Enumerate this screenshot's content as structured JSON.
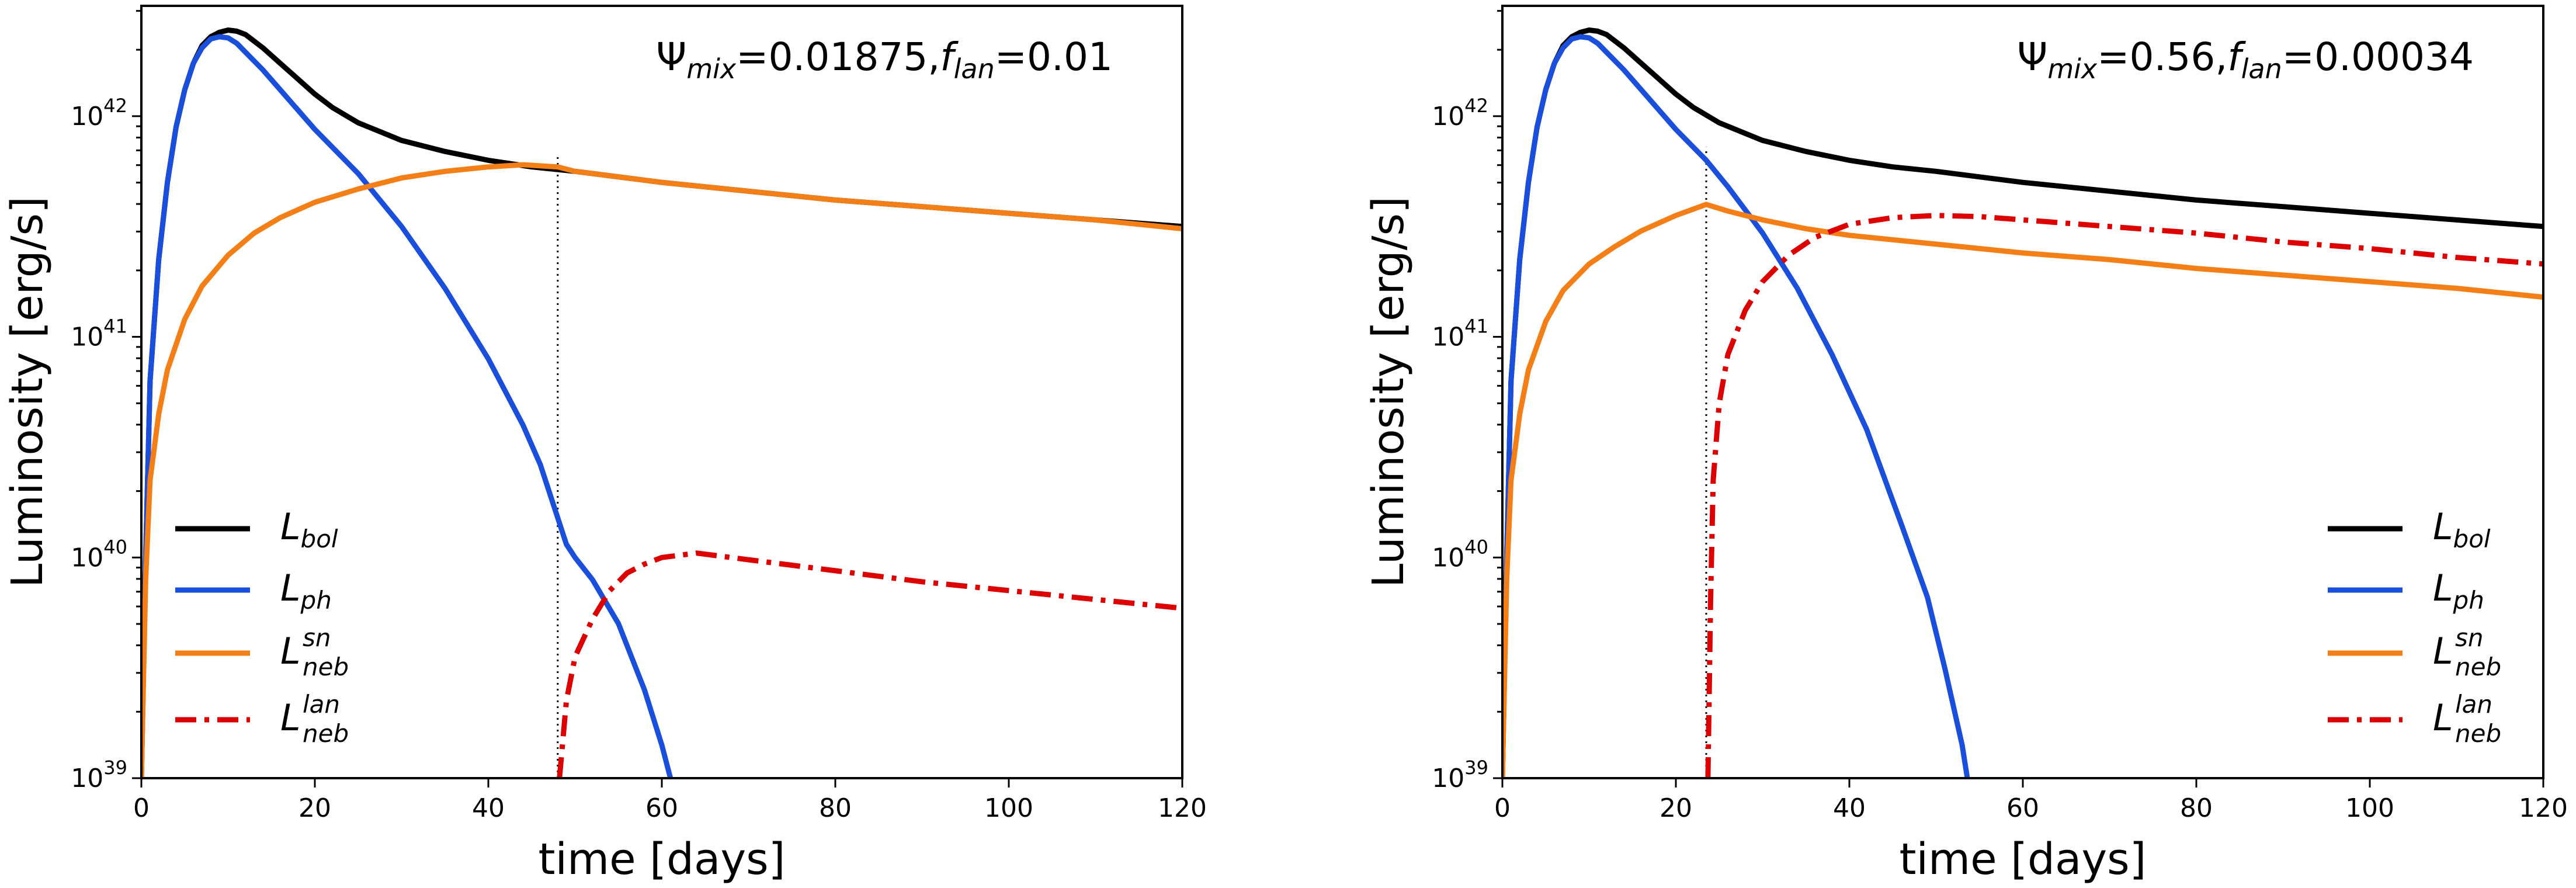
{
  "chart_data": [
    {
      "type": "line",
      "title": "",
      "annotation": {
        "psi_symbol": "Ψ",
        "psi_sub": "mix",
        "psi_value": "=0.01875,",
        "f_symbol": "f",
        "f_sub": "lan",
        "f_value": "=0.01"
      },
      "xlabel": "time [days]",
      "ylabel": "Luminosity [erg/s]",
      "xlim": [
        0,
        120
      ],
      "ylim_log10": [
        39,
        42.5
      ],
      "yscale": "log",
      "x_ticks": [
        0,
        20,
        40,
        60,
        80,
        100,
        120
      ],
      "y_ticks": [
        {
          "base": "10",
          "exp": "39",
          "value_log10": 39
        },
        {
          "base": "10",
          "exp": "40",
          "value_log10": 40
        },
        {
          "base": "10",
          "exp": "41",
          "value_log10": 41
        },
        {
          "base": "10",
          "exp": "42",
          "value_log10": 42
        }
      ],
      "legend_position": "left",
      "vline": {
        "x": 48,
        "style": "dotted"
      },
      "series": [
        {
          "key": "bol",
          "name": "L",
          "sup": "",
          "sub": "bol",
          "color": "#000000",
          "style": "solid",
          "points": [
            [
              0,
              39.0
            ],
            [
              0.5,
              40.0
            ],
            [
              1,
              40.8
            ],
            [
              2,
              41.35
            ],
            [
              3,
              41.7
            ],
            [
              4,
              41.95
            ],
            [
              5,
              42.12
            ],
            [
              6,
              42.24
            ],
            [
              7,
              42.32
            ],
            [
              8,
              42.36
            ],
            [
              9,
              42.38
            ],
            [
              10,
              42.39
            ],
            [
              11,
              42.385
            ],
            [
              12,
              42.37
            ],
            [
              14,
              42.31
            ],
            [
              16,
              42.24
            ],
            [
              18,
              42.17
            ],
            [
              20,
              42.1
            ],
            [
              22,
              42.04
            ],
            [
              25,
              41.97
            ],
            [
              30,
              41.89
            ],
            [
              35,
              41.84
            ],
            [
              40,
              41.8
            ],
            [
              45,
              41.77
            ],
            [
              50,
              41.75
            ],
            [
              60,
              41.7
            ],
            [
              70,
              41.66
            ],
            [
              80,
              41.62
            ],
            [
              90,
              41.59
            ],
            [
              100,
              41.56
            ],
            [
              110,
              41.53
            ],
            [
              120,
              41.5
            ]
          ]
        },
        {
          "key": "ph",
          "name": "L",
          "sup": "",
          "sub": "ph",
          "color": "#1a4fdc",
          "style": "solid",
          "points": [
            [
              0,
              39.0
            ],
            [
              0.5,
              40.0
            ],
            [
              1,
              40.8
            ],
            [
              2,
              41.35
            ],
            [
              3,
              41.7
            ],
            [
              4,
              41.95
            ],
            [
              5,
              42.12
            ],
            [
              6,
              42.24
            ],
            [
              7,
              42.31
            ],
            [
              8,
              42.35
            ],
            [
              9,
              42.36
            ],
            [
              10,
              42.355
            ],
            [
              11,
              42.33
            ],
            [
              12,
              42.29
            ],
            [
              14,
              42.21
            ],
            [
              16,
              42.12
            ],
            [
              18,
              42.03
            ],
            [
              20,
              41.94
            ],
            [
              25,
              41.74
            ],
            [
              30,
              41.5
            ],
            [
              35,
              41.22
            ],
            [
              40,
              40.9
            ],
            [
              44,
              40.6
            ],
            [
              46,
              40.42
            ],
            [
              48,
              40.18
            ],
            [
              49,
              40.06
            ],
            [
              50,
              40.0
            ],
            [
              52,
              39.9
            ],
            [
              55,
              39.7
            ],
            [
              58,
              39.4
            ],
            [
              60,
              39.15
            ],
            [
              61,
              39.0
            ]
          ]
        },
        {
          "key": "sn",
          "name": "L",
          "sup": "sn",
          "sub": "neb",
          "color": "#f57f17",
          "style": "solid",
          "points": [
            [
              0,
              39.0
            ],
            [
              0.5,
              39.9
            ],
            [
              1,
              40.35
            ],
            [
              2,
              40.65
            ],
            [
              3,
              40.85
            ],
            [
              5,
              41.08
            ],
            [
              7,
              41.23
            ],
            [
              10,
              41.37
            ],
            [
              13,
              41.47
            ],
            [
              16,
              41.54
            ],
            [
              20,
              41.61
            ],
            [
              25,
              41.67
            ],
            [
              30,
              41.72
            ],
            [
              35,
              41.75
            ],
            [
              40,
              41.77
            ],
            [
              44,
              41.78
            ],
            [
              48,
              41.77
            ],
            [
              50,
              41.75
            ],
            [
              60,
              41.7
            ],
            [
              70,
              41.66
            ],
            [
              80,
              41.62
            ],
            [
              90,
              41.59
            ],
            [
              100,
              41.56
            ],
            [
              110,
              41.53
            ],
            [
              120,
              41.49
            ]
          ]
        },
        {
          "key": "lan",
          "name": "L",
          "sup": "lan",
          "sub": "neb",
          "color": "#dd0000",
          "style": "dashdot",
          "points": [
            [
              48.2,
              39.0
            ],
            [
              49,
              39.35
            ],
            [
              50,
              39.55
            ],
            [
              52,
              39.72
            ],
            [
              54,
              39.85
            ],
            [
              56,
              39.93
            ],
            [
              58,
              39.97
            ],
            [
              60,
              40.0
            ],
            [
              62,
              40.01
            ],
            [
              64,
              40.02
            ],
            [
              66,
              40.01
            ],
            [
              70,
              39.99
            ],
            [
              80,
              39.94
            ],
            [
              90,
              39.89
            ],
            [
              100,
              39.85
            ],
            [
              110,
              39.81
            ],
            [
              120,
              39.77
            ]
          ]
        }
      ]
    },
    {
      "type": "line",
      "title": "",
      "annotation": {
        "psi_symbol": "Ψ",
        "psi_sub": "mix",
        "psi_value": "=0.56,",
        "f_symbol": "f",
        "f_sub": "lan",
        "f_value": "=0.00034"
      },
      "xlabel": "time [days]",
      "ylabel": "Luminosity [erg/s]",
      "xlim": [
        0,
        120
      ],
      "ylim_log10": [
        39,
        42.5
      ],
      "yscale": "log",
      "x_ticks": [
        0,
        20,
        40,
        60,
        80,
        100,
        120
      ],
      "y_ticks": [
        {
          "base": "10",
          "exp": "39",
          "value_log10": 39
        },
        {
          "base": "10",
          "exp": "40",
          "value_log10": 40
        },
        {
          "base": "10",
          "exp": "41",
          "value_log10": 41
        },
        {
          "base": "10",
          "exp": "42",
          "value_log10": 42
        }
      ],
      "legend_position": "right",
      "vline": {
        "x": 23.5,
        "style": "dotted"
      },
      "series": [
        {
          "key": "bol",
          "name": "L",
          "sup": "",
          "sub": "bol",
          "color": "#000000",
          "style": "solid",
          "points": [
            [
              0,
              39.0
            ],
            [
              0.5,
              40.0
            ],
            [
              1,
              40.8
            ],
            [
              2,
              41.35
            ],
            [
              3,
              41.7
            ],
            [
              4,
              41.95
            ],
            [
              5,
              42.12
            ],
            [
              6,
              42.24
            ],
            [
              7,
              42.32
            ],
            [
              8,
              42.36
            ],
            [
              9,
              42.38
            ],
            [
              10,
              42.39
            ],
            [
              11,
              42.385
            ],
            [
              12,
              42.37
            ],
            [
              14,
              42.31
            ],
            [
              16,
              42.24
            ],
            [
              18,
              42.17
            ],
            [
              20,
              42.1
            ],
            [
              22,
              42.04
            ],
            [
              25,
              41.97
            ],
            [
              30,
              41.89
            ],
            [
              35,
              41.84
            ],
            [
              40,
              41.8
            ],
            [
              45,
              41.77
            ],
            [
              50,
              41.75
            ],
            [
              60,
              41.7
            ],
            [
              70,
              41.66
            ],
            [
              80,
              41.62
            ],
            [
              90,
              41.59
            ],
            [
              100,
              41.56
            ],
            [
              110,
              41.53
            ],
            [
              120,
              41.5
            ]
          ]
        },
        {
          "key": "ph",
          "name": "L",
          "sup": "",
          "sub": "ph",
          "color": "#1a4fdc",
          "style": "solid",
          "points": [
            [
              0,
              39.0
            ],
            [
              0.5,
              40.0
            ],
            [
              1,
              40.8
            ],
            [
              2,
              41.35
            ],
            [
              3,
              41.7
            ],
            [
              4,
              41.95
            ],
            [
              5,
              42.12
            ],
            [
              6,
              42.24
            ],
            [
              7,
              42.31
            ],
            [
              8,
              42.35
            ],
            [
              9,
              42.36
            ],
            [
              10,
              42.355
            ],
            [
              11,
              42.33
            ],
            [
              12,
              42.29
            ],
            [
              14,
              42.21
            ],
            [
              16,
              42.12
            ],
            [
              18,
              42.03
            ],
            [
              20,
              41.94
            ],
            [
              23.5,
              41.8
            ],
            [
              26,
              41.68
            ],
            [
              30,
              41.47
            ],
            [
              34,
              41.22
            ],
            [
              38,
              40.92
            ],
            [
              42,
              40.58
            ],
            [
              46,
              40.15
            ],
            [
              49,
              39.82
            ],
            [
              51,
              39.5
            ],
            [
              53,
              39.15
            ],
            [
              53.6,
              39.0
            ]
          ]
        },
        {
          "key": "sn",
          "name": "L",
          "sup": "sn",
          "sub": "neb",
          "color": "#f57f17",
          "style": "solid",
          "points": [
            [
              0,
              39.0
            ],
            [
              0.5,
              39.9
            ],
            [
              1,
              40.35
            ],
            [
              2,
              40.65
            ],
            [
              3,
              40.85
            ],
            [
              5,
              41.07
            ],
            [
              7,
              41.21
            ],
            [
              10,
              41.33
            ],
            [
              13,
              41.41
            ],
            [
              16,
              41.48
            ],
            [
              20,
              41.55
            ],
            [
              23.5,
              41.6
            ],
            [
              26,
              41.57
            ],
            [
              30,
              41.53
            ],
            [
              35,
              41.49
            ],
            [
              40,
              41.46
            ],
            [
              50,
              41.42
            ],
            [
              60,
              41.38
            ],
            [
              70,
              41.35
            ],
            [
              80,
              41.31
            ],
            [
              90,
              41.28
            ],
            [
              100,
              41.25
            ],
            [
              110,
              41.22
            ],
            [
              120,
              41.18
            ]
          ]
        },
        {
          "key": "lan",
          "name": "L",
          "sup": "lan",
          "sub": "neb",
          "color": "#dd0000",
          "style": "dashdot",
          "points": [
            [
              23.7,
              39.0
            ],
            [
              24,
              39.8
            ],
            [
              24.3,
              40.35
            ],
            [
              25,
              40.7
            ],
            [
              26,
              40.92
            ],
            [
              28,
              41.12
            ],
            [
              30,
              41.25
            ],
            [
              33,
              41.37
            ],
            [
              36,
              41.45
            ],
            [
              40,
              41.51
            ],
            [
              45,
              41.54
            ],
            [
              50,
              41.55
            ],
            [
              55,
              41.545
            ],
            [
              60,
              41.53
            ],
            [
              70,
              41.5
            ],
            [
              80,
              41.47
            ],
            [
              90,
              41.43
            ],
            [
              100,
              41.4
            ],
            [
              110,
              41.36
            ],
            [
              120,
              41.33
            ]
          ]
        }
      ]
    }
  ]
}
